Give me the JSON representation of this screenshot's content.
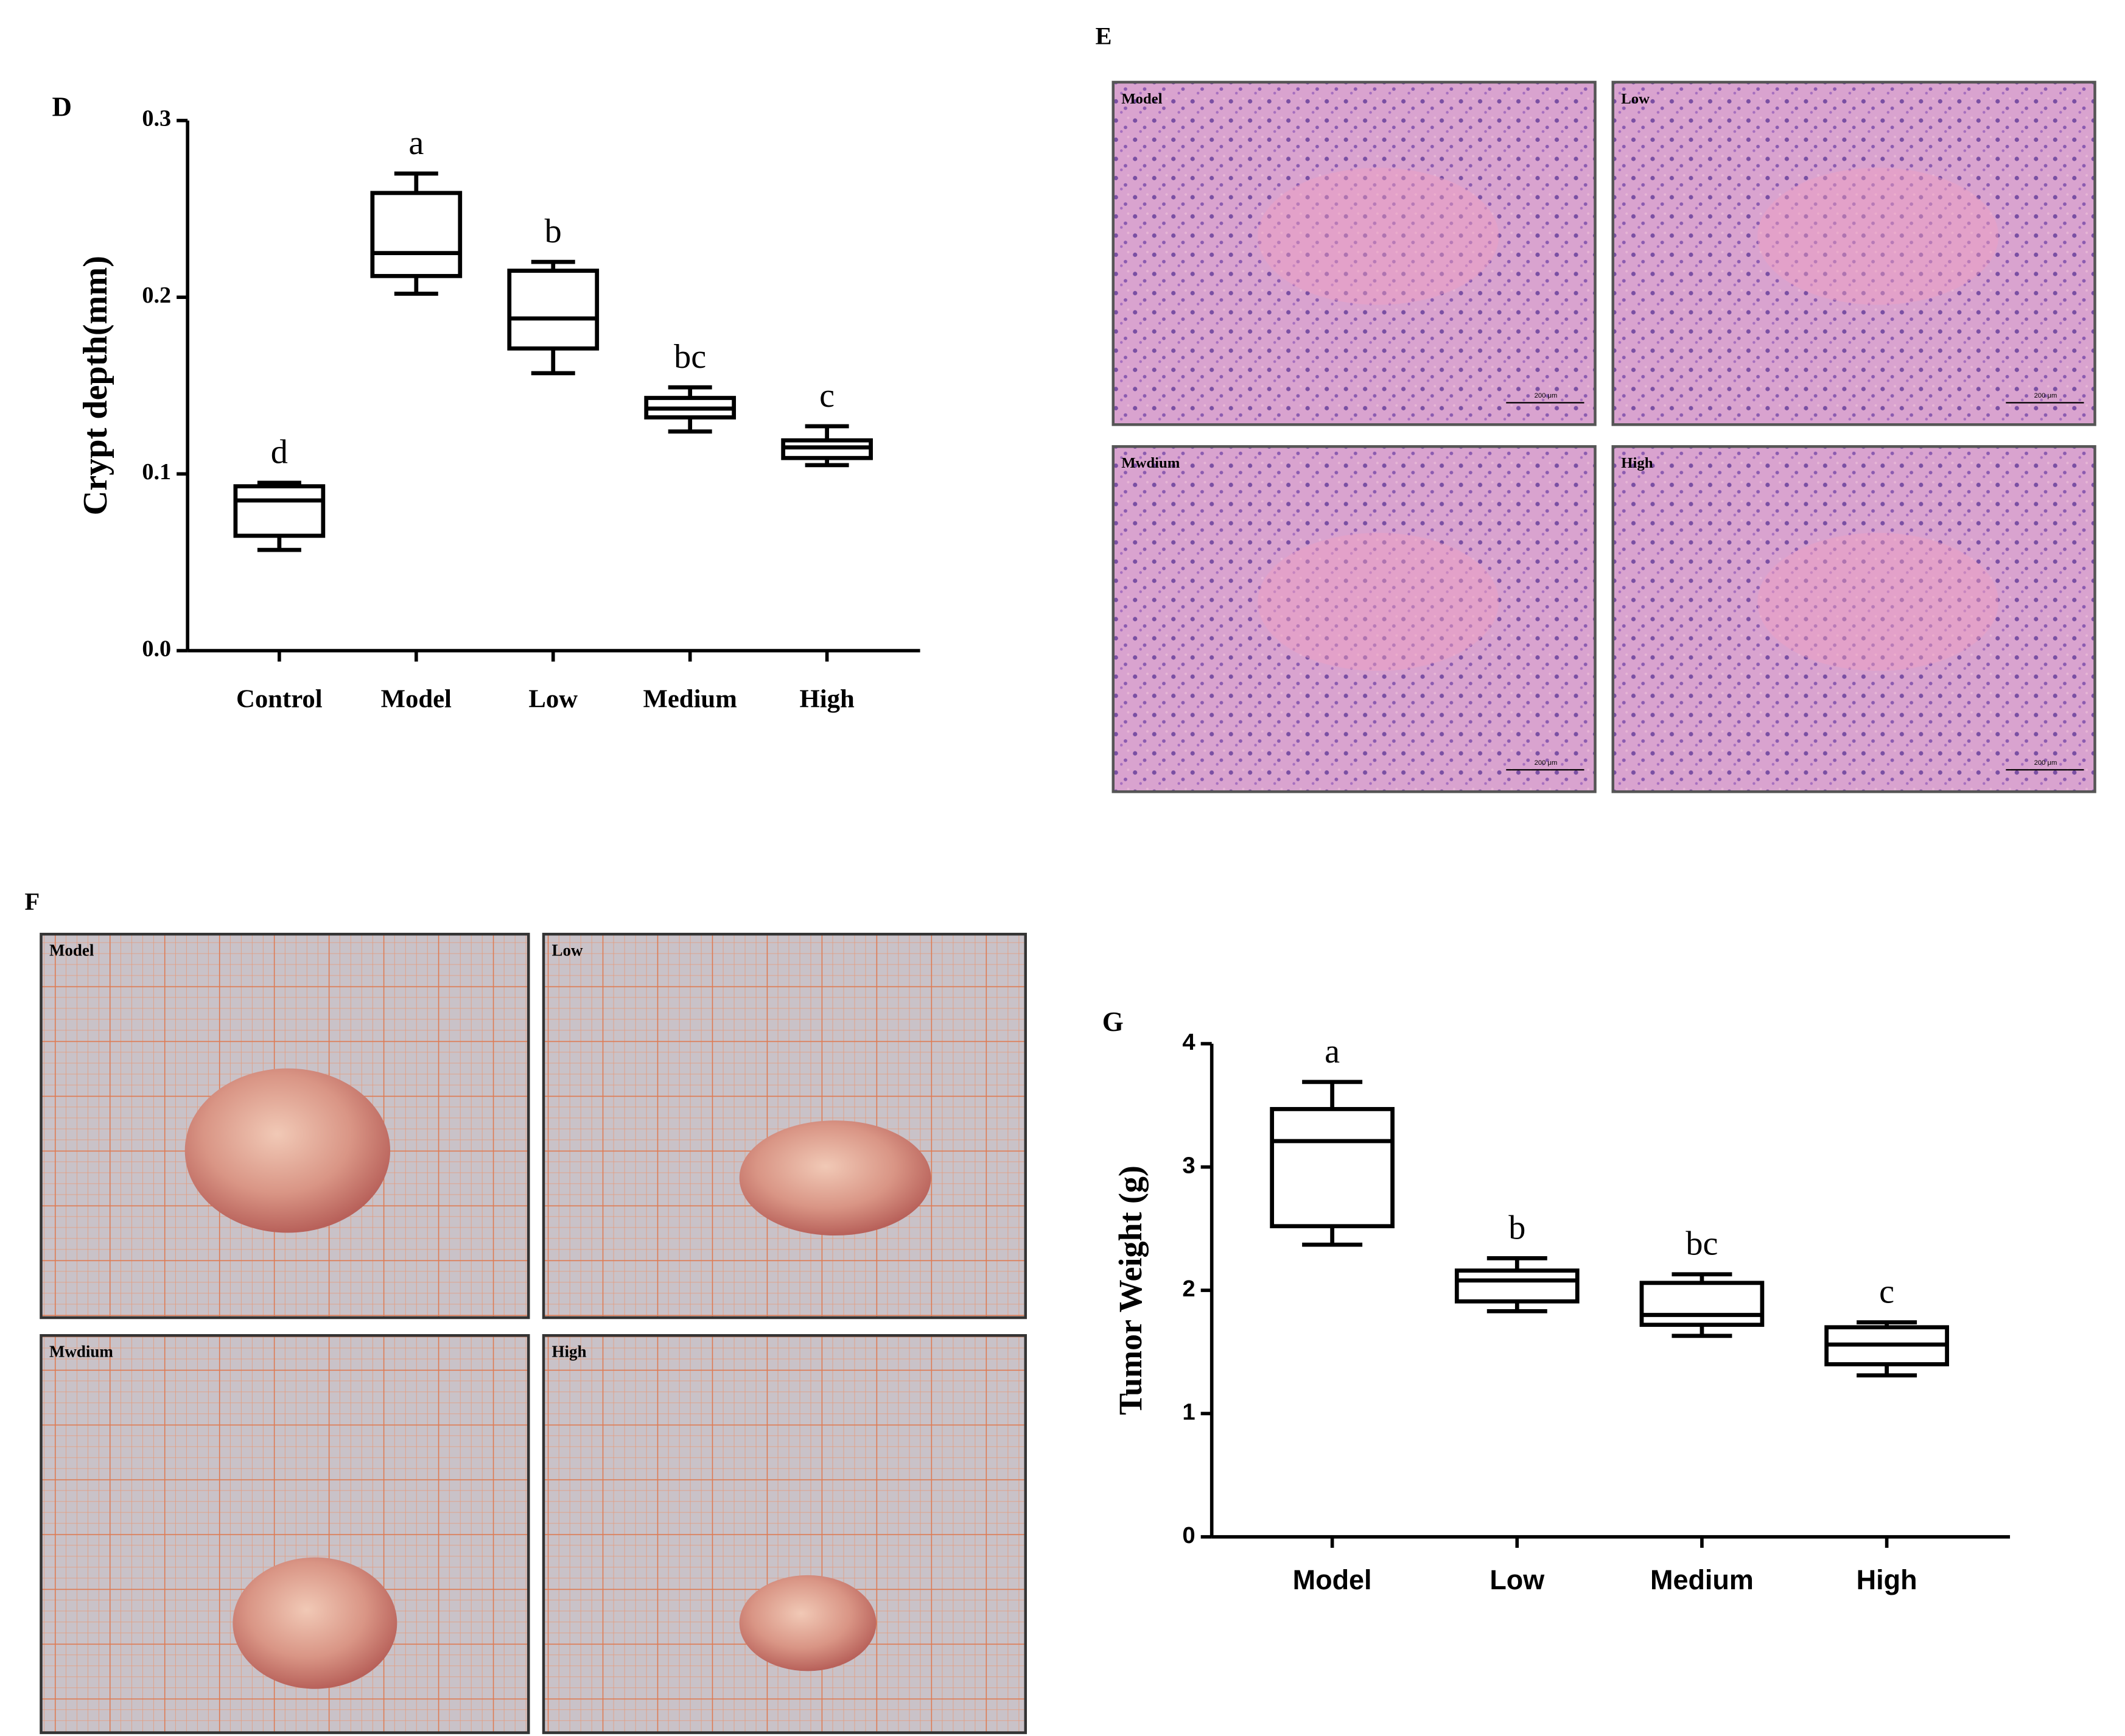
{
  "chart_data": [
    {
      "type": "box",
      "panel": "D",
      "y_label": "Crypt depth(mm)",
      "categories": [
        "Control",
        "Model",
        "Low",
        "Medium",
        "High"
      ],
      "boxes": [
        {
          "min": 0.057,
          "q1": 0.065,
          "median": 0.085,
          "q3": 0.093,
          "max": 0.095
        },
        {
          "min": 0.202,
          "q1": 0.212,
          "median": 0.225,
          "q3": 0.259,
          "max": 0.27
        },
        {
          "min": 0.157,
          "q1": 0.171,
          "median": 0.188,
          "q3": 0.215,
          "max": 0.22
        },
        {
          "min": 0.124,
          "q1": 0.132,
          "median": 0.137,
          "q3": 0.143,
          "max": 0.149
        },
        {
          "min": 0.105,
          "q1": 0.109,
          "median": 0.115,
          "q3": 0.119,
          "max": 0.127
        }
      ],
      "annotations": [
        "d",
        "a",
        "b",
        "bc",
        "c"
      ],
      "ylim": [
        0,
        0.3
      ],
      "yticks": [
        {
          "value": 0,
          "label": "0.0"
        },
        0.1,
        0.2,
        0.3
      ]
    },
    {
      "type": "box",
      "panel": "G",
      "y_label": "Tumor Weight (g)",
      "categories": [
        "Model",
        "Low",
        "Medium",
        "High"
      ],
      "boxes": [
        {
          "min": 2.37,
          "q1": 2.52,
          "median": 3.21,
          "q3": 3.47,
          "max": 3.69
        },
        {
          "min": 1.83,
          "q1": 1.91,
          "median": 2.08,
          "q3": 2.16,
          "max": 2.26
        },
        {
          "min": 1.63,
          "q1": 1.72,
          "median": 1.8,
          "q3": 2.06,
          "max": 2.13
        },
        {
          "min": 1.31,
          "q1": 1.4,
          "median": 1.56,
          "q3": 1.7,
          "max": 1.74
        }
      ],
      "annotations": [
        "a",
        "b",
        "bc",
        "c"
      ],
      "ylim": [
        0,
        4
      ],
      "yticks": [
        0,
        1,
        2,
        3,
        4
      ]
    }
  ],
  "histology": {
    "panel": "E",
    "labels": [
      "Model",
      "Low",
      "Mwdium",
      "High"
    ],
    "scale_bar": "200 μm"
  },
  "gross": {
    "panel": "F",
    "labels": [
      "Model",
      "Low",
      "Mwdium",
      "High"
    ]
  }
}
